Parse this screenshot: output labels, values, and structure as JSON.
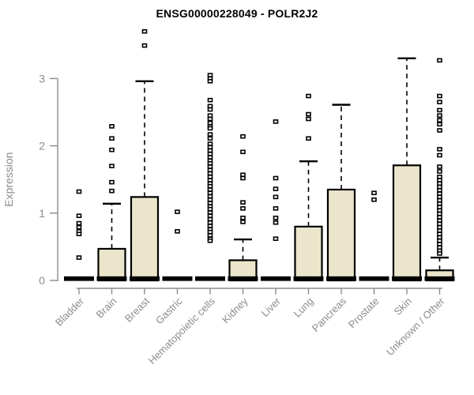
{
  "chart_data": {
    "type": "boxplot",
    "title": "ENSG00000228049 - POLR2J2",
    "xlabel": "",
    "ylabel": "Expression",
    "yticks": [
      0,
      1,
      2,
      3
    ],
    "ylim": [
      0,
      3.75
    ],
    "grid": false,
    "legend": "none",
    "categories": [
      "Bladder",
      "Brain",
      "Breast",
      "Gastric",
      "Hematopoietic cells",
      "Kidney",
      "Liver",
      "Lung",
      "Pancreas",
      "Prostate",
      "Skin",
      "Unknown / Other"
    ],
    "series": [
      {
        "category": "Bladder",
        "min": 0,
        "q1": 0,
        "median": 0,
        "q3": 0,
        "whisker_high": 0,
        "outliers": [
          1.32,
          0.96,
          0.85,
          0.79,
          0.73,
          0.69,
          0.34
        ]
      },
      {
        "category": "Brain",
        "min": 0,
        "q1": 0,
        "median": 0,
        "q3": 0.47,
        "whisker_high": 1.14,
        "outliers": [
          2.29,
          2.11,
          1.94,
          1.7,
          1.46,
          1.33
        ]
      },
      {
        "category": "Breast",
        "min": 0,
        "q1": 0,
        "median": 0,
        "q3": 1.24,
        "whisker_high": 2.96,
        "outliers": [
          3.7,
          3.49
        ]
      },
      {
        "category": "Gastric",
        "min": 0,
        "q1": 0,
        "median": 0,
        "q3": 0,
        "whisker_high": 0,
        "outliers": [
          1.02,
          0.73
        ]
      },
      {
        "category": "Hematopoietic cells",
        "min": 0,
        "q1": 0,
        "median": 0,
        "q3": 0,
        "whisker_high": 0,
        "outliers": [
          3.05,
          3.0,
          2.96,
          2.68,
          2.59,
          2.54,
          2.45,
          2.4,
          2.34,
          2.29,
          2.26,
          2.17,
          2.11,
          2.03,
          1.98,
          1.93,
          1.88,
          1.83,
          1.78,
          1.74,
          1.69,
          1.64,
          1.59,
          1.54,
          1.49,
          1.44,
          1.4,
          1.35,
          1.3,
          1.25,
          1.2,
          1.15,
          1.1,
          1.06,
          1.01,
          0.96,
          0.91,
          0.86,
          0.81,
          0.76,
          0.72,
          0.67,
          0.62,
          0.59
        ]
      },
      {
        "category": "Kidney",
        "min": 0,
        "q1": 0,
        "median": 0,
        "q3": 0.3,
        "whisker_high": 0.61,
        "outliers": [
          2.14,
          1.91,
          1.57,
          1.52,
          1.16,
          1.07,
          0.93,
          0.87
        ]
      },
      {
        "category": "Liver",
        "min": 0,
        "q1": 0,
        "median": 0,
        "q3": 0,
        "whisker_high": 0,
        "outliers": [
          2.36,
          1.52,
          1.36,
          1.24,
          1.07,
          0.93,
          0.86,
          0.62
        ]
      },
      {
        "category": "Lung",
        "min": 0,
        "q1": 0,
        "median": 0,
        "q3": 0.8,
        "whisker_high": 1.77,
        "outliers": [
          2.74,
          2.47,
          2.4,
          2.11
        ]
      },
      {
        "category": "Pancreas",
        "min": 0,
        "q1": 0,
        "median": 0,
        "q3": 1.35,
        "whisker_high": 2.61,
        "outliers": []
      },
      {
        "category": "Prostate",
        "min": 0,
        "q1": 0,
        "median": 0,
        "q3": 0,
        "whisker_high": 0,
        "outliers": [
          1.3,
          1.2
        ]
      },
      {
        "category": "Skin",
        "min": 0,
        "q1": 0,
        "median": 0,
        "q3": 1.71,
        "whisker_high": 3.3,
        "outliers": []
      },
      {
        "category": "Unknown / Other",
        "min": 0,
        "q1": 0,
        "median": 0,
        "q3": 0.15,
        "whisker_high": 0.34,
        "outliers": [
          3.27,
          2.74,
          2.65,
          2.53,
          2.45,
          2.38,
          2.32,
          2.23,
          1.95,
          1.86,
          1.69,
          1.62,
          1.54,
          1.49,
          1.44,
          1.39,
          1.34,
          1.29,
          1.24,
          1.19,
          1.14,
          1.09,
          1.04,
          0.99,
          0.94,
          0.89,
          0.84,
          0.79,
          0.74,
          0.69,
          0.64,
          0.59,
          0.54,
          0.49,
          0.44,
          0.4
        ]
      }
    ],
    "colors": {
      "box_fill": "#EBE6CB",
      "box_stroke": "#000000",
      "median": "#000000",
      "axis": "#8C8C8C",
      "tick_label": "#8C8C8C",
      "title": "#000000",
      "background": "#FFFFFF"
    }
  }
}
